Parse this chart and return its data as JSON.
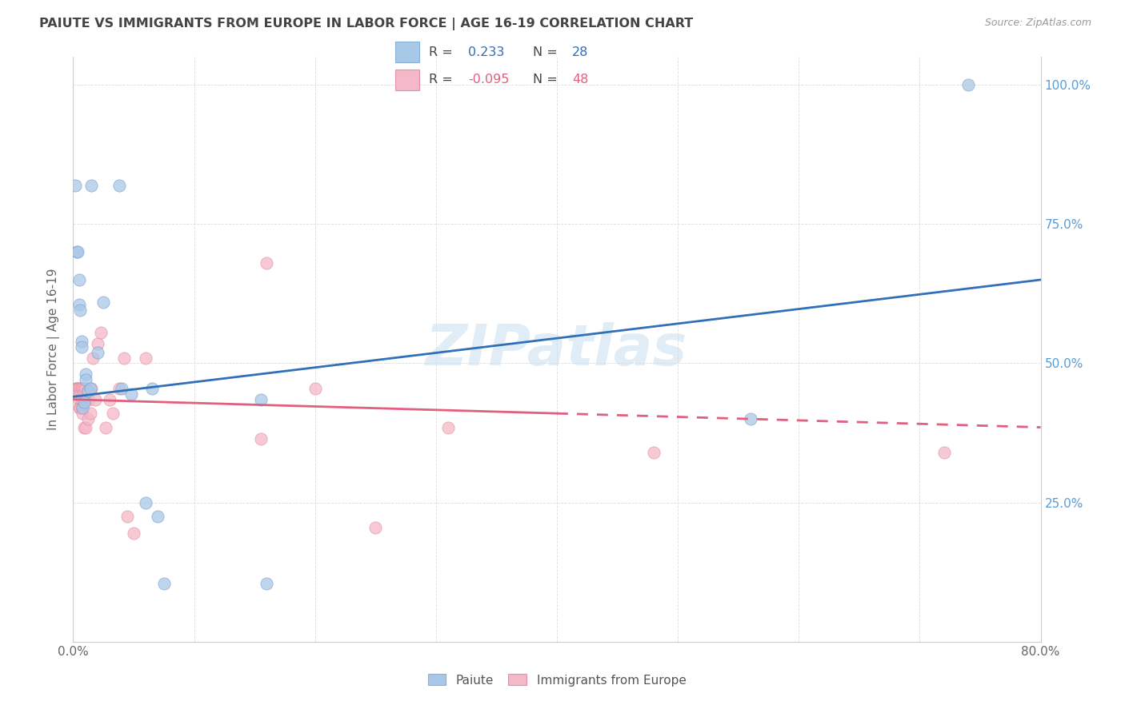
{
  "title": "PAIUTE VS IMMIGRANTS FROM EUROPE IN LABOR FORCE | AGE 16-19 CORRELATION CHART",
  "source": "Source: ZipAtlas.com",
  "ylabel": "In Labor Force | Age 16-19",
  "right_yticks": [
    "100.0%",
    "75.0%",
    "50.0%",
    "25.0%"
  ],
  "right_ytick_vals": [
    1.0,
    0.75,
    0.5,
    0.25
  ],
  "xlim": [
    0.0,
    0.8
  ],
  "ylim": [
    0.0,
    1.05
  ],
  "paiute_color": "#a8c8e8",
  "immigrant_color": "#f4b8c8",
  "trendline_paiute_color": "#3070b8",
  "trendline_immigrant_color": "#e06080",
  "watermark_text": "ZIPatlas",
  "paiute_x": [
    0.002,
    0.003,
    0.004,
    0.005,
    0.005,
    0.006,
    0.007,
    0.007,
    0.008,
    0.009,
    0.01,
    0.01,
    0.012,
    0.014,
    0.015,
    0.02,
    0.025,
    0.038,
    0.04,
    0.048,
    0.06,
    0.065,
    0.07,
    0.075,
    0.155,
    0.16,
    0.56,
    0.74
  ],
  "paiute_y": [
    0.82,
    0.7,
    0.7,
    0.65,
    0.605,
    0.595,
    0.54,
    0.53,
    0.42,
    0.43,
    0.48,
    0.47,
    0.45,
    0.455,
    0.82,
    0.52,
    0.61,
    0.82,
    0.455,
    0.445,
    0.25,
    0.455,
    0.225,
    0.105,
    0.435,
    0.105,
    0.4,
    1.0
  ],
  "immigrant_x": [
    0.002,
    0.003,
    0.003,
    0.004,
    0.004,
    0.004,
    0.005,
    0.005,
    0.005,
    0.006,
    0.006,
    0.006,
    0.007,
    0.007,
    0.007,
    0.008,
    0.008,
    0.008,
    0.009,
    0.009,
    0.009,
    0.01,
    0.01,
    0.01,
    0.011,
    0.012,
    0.013,
    0.014,
    0.015,
    0.016,
    0.018,
    0.02,
    0.023,
    0.027,
    0.03,
    0.033,
    0.038,
    0.042,
    0.045,
    0.05,
    0.06,
    0.155,
    0.16,
    0.2,
    0.25,
    0.31,
    0.48,
    0.72
  ],
  "immigrant_y": [
    0.455,
    0.455,
    0.455,
    0.455,
    0.455,
    0.445,
    0.455,
    0.435,
    0.42,
    0.455,
    0.445,
    0.42,
    0.455,
    0.435,
    0.42,
    0.455,
    0.445,
    0.41,
    0.455,
    0.445,
    0.385,
    0.455,
    0.435,
    0.385,
    0.445,
    0.4,
    0.435,
    0.41,
    0.455,
    0.51,
    0.435,
    0.535,
    0.555,
    0.385,
    0.435,
    0.41,
    0.455,
    0.51,
    0.225,
    0.195,
    0.51,
    0.365,
    0.68,
    0.455,
    0.205,
    0.385,
    0.34,
    0.34
  ],
  "trendline_paiute_x0": 0.0,
  "trendline_paiute_y0": 0.44,
  "trendline_paiute_x1": 0.8,
  "trendline_paiute_y1": 0.65,
  "trendline_immigrant_x0": 0.0,
  "trendline_immigrant_y0": 0.435,
  "trendline_immigrant_x1": 0.8,
  "trendline_immigrant_y1": 0.385,
  "trendline_solid_end": 0.4,
  "background_color": "#ffffff",
  "grid_color": "#dddddd",
  "title_color": "#444444",
  "right_axis_color": "#5b9bd5",
  "legend_text_color_1": "#3070b8",
  "legend_text_color_2": "#e06080",
  "legend_box_color_paiute": "#a8c8e8",
  "legend_box_color_immigrant": "#f4b8c8",
  "legend_border_color": "#cccccc"
}
